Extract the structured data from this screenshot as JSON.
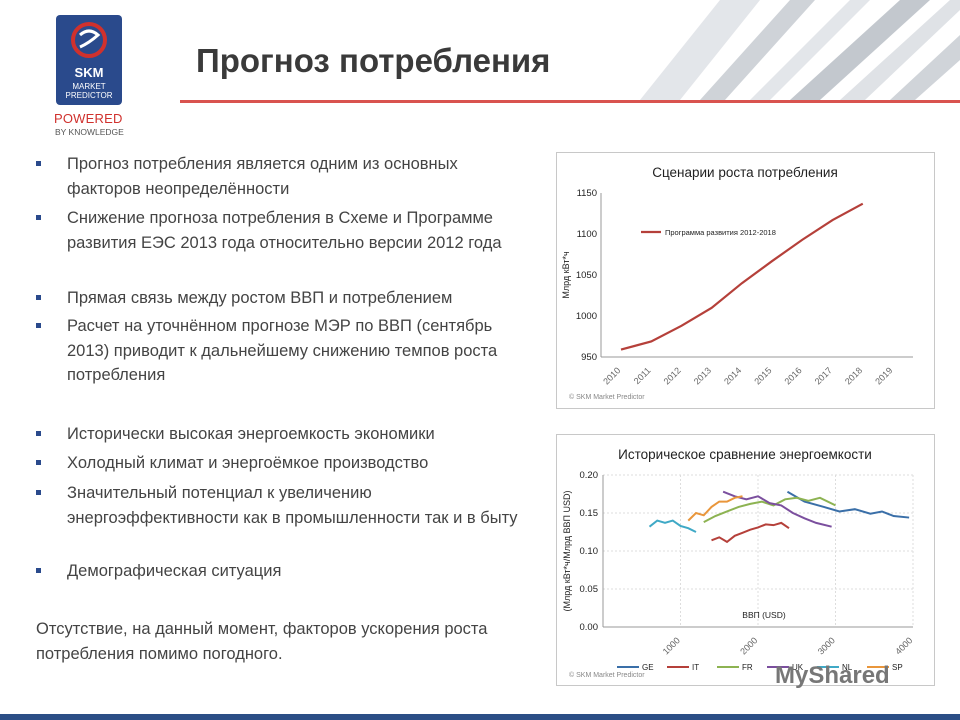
{
  "logo": {
    "brand": "SKM",
    "sub_line1": "MARKET",
    "sub_line2": "PREDICTOR",
    "powered": "POWERED",
    "by_knowledge": "BY KNOWLEDGE"
  },
  "title": "Прогноз потребления",
  "bullets": [
    "Прогноз потребления является одним из основных факторов неопределённости",
    "Снижение прогноза потребления в Схеме и Программе развития ЕЭС 2013 года относительно версии 2012 года",
    "Прямая связь между ростом ВВП и потреблением",
    "Расчет  на уточнённом прогнозе МЭР по ВВП (сентябрь 2013) приводит к дальнейшему снижению темпов роста потребления",
    "Исторически высокая энергоемкость экономики",
    "Холодный климат и энергоёмкое производство",
    "Значительный потенциал к увеличению энергоэффективности как в промышленности так и в быту",
    "Демографическая ситуация"
  ],
  "closing": "Отсутствие, на данный момент, факторов ускорения роста потребления помимо погодного.",
  "watermark": "MyShared",
  "chart_data": [
    {
      "type": "line",
      "title": "Сценарии роста потребления",
      "ylabel": "Млрд кВт*ч",
      "xlabel": "",
      "categories": [
        "2010",
        "2011",
        "2012",
        "2013",
        "2014",
        "2015",
        "2016",
        "2017",
        "2018",
        "2019"
      ],
      "ylim": [
        950,
        1150
      ],
      "yticks": [
        950,
        1000,
        1050,
        1100,
        1150
      ],
      "series": [
        {
          "name": "Программа развития 2012-2018",
          "color": "#b5403a",
          "x": [
            2010,
            2011,
            2012,
            2013,
            2014,
            2015,
            2016,
            2017,
            2018
          ],
          "values": [
            959,
            969,
            988,
            1010,
            1040,
            1067,
            1093,
            1117,
            1137
          ]
        }
      ],
      "legend": "top-left",
      "footnote": "© SKM Market Predictor"
    },
    {
      "type": "line",
      "title": "Историческое сравнение энергоемкости",
      "ylabel": "(Млрд кВт*ч/Млрд ВВП USD)",
      "xlabel": "ВВП (USD)",
      "xlim": [
        0,
        4000
      ],
      "xticks": [
        1000,
        2000,
        3000,
        4000
      ],
      "ylim": [
        0,
        0.2
      ],
      "yticks": [
        0.0,
        0.05,
        0.1,
        0.15,
        0.2
      ],
      "series": [
        {
          "name": "GE",
          "color": "#3a6fa8",
          "x": [
            2380,
            2600,
            2850,
            3050,
            3250,
            3450,
            3600,
            3750,
            3950
          ],
          "values": [
            0.178,
            0.165,
            0.158,
            0.152,
            0.155,
            0.149,
            0.152,
            0.146,
            0.144
          ]
        },
        {
          "name": "IT",
          "color": "#b5403a",
          "x": [
            1400,
            1500,
            1600,
            1700,
            1800,
            1900,
            2000,
            2100,
            2200,
            2300,
            2400
          ],
          "values": [
            0.114,
            0.118,
            0.112,
            0.12,
            0.124,
            0.128,
            0.131,
            0.135,
            0.134,
            0.137,
            0.13
          ]
        },
        {
          "name": "FR",
          "color": "#8db352",
          "x": [
            1300,
            1450,
            1600,
            1750,
            1900,
            2050,
            2200,
            2350,
            2500,
            2650,
            2800,
            3000
          ],
          "values": [
            0.138,
            0.146,
            0.152,
            0.158,
            0.162,
            0.165,
            0.16,
            0.168,
            0.17,
            0.166,
            0.17,
            0.16
          ]
        },
        {
          "name": "UK",
          "color": "#7b4f9e",
          "x": [
            1550,
            1700,
            1850,
            2000,
            2150,
            2300,
            2450,
            2600,
            2750,
            2950
          ],
          "values": [
            0.178,
            0.172,
            0.168,
            0.172,
            0.163,
            0.16,
            0.15,
            0.143,
            0.137,
            0.132
          ]
        },
        {
          "name": "NL",
          "color": "#3fa9c6",
          "x": [
            600,
            700,
            800,
            900,
            1000,
            1100,
            1200
          ],
          "values": [
            0.132,
            0.14,
            0.137,
            0.14,
            0.133,
            0.13,
            0.125
          ]
        },
        {
          "name": "SP",
          "color": "#e9963b",
          "x": [
            1100,
            1200,
            1300,
            1400,
            1500,
            1600,
            1700,
            1800
          ],
          "values": [
            0.14,
            0.15,
            0.147,
            0.158,
            0.165,
            0.165,
            0.17,
            0.172
          ]
        }
      ],
      "legend": "bottom",
      "footnote": "© SKM Market Predictor"
    }
  ]
}
